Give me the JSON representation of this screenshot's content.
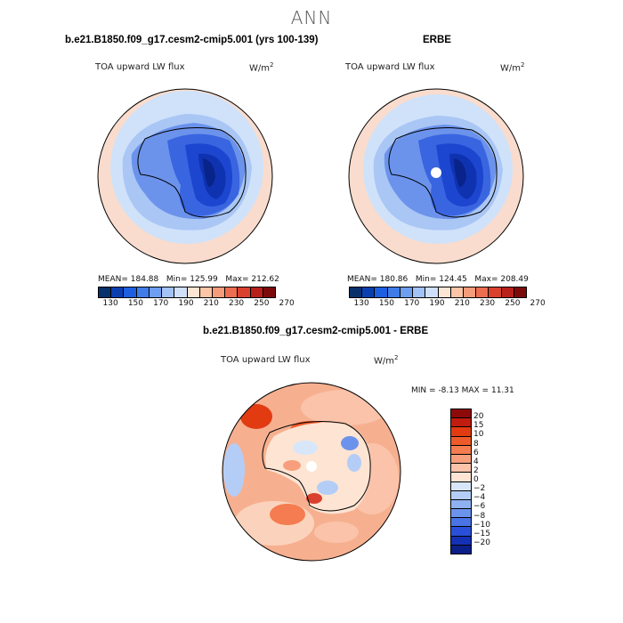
{
  "figure": {
    "season": "ANN"
  },
  "panel_model": {
    "title": "b.e21.B1850.f09_g17.cesm2-cmip5.001 (yrs 100-139)",
    "variable": "TOA upward LW flux",
    "units_base": "W/m",
    "units_exp": "2",
    "mean_label": "MEAN=",
    "mean": "184.88",
    "min_label": "Min=",
    "min": "125.99",
    "max_label": "Max=",
    "max": "212.62"
  },
  "panel_obs": {
    "title": "ERBE",
    "variable": "TOA upward LW flux",
    "units_base": "W/m",
    "units_exp": "2",
    "mean_label": "MEAN=",
    "mean": "180.86",
    "min_label": "Min=",
    "min": "124.45",
    "max_label": "Max=",
    "max": "208.49"
  },
  "panel_diff": {
    "title": "b.e21.B1850.f09_g17.cesm2-cmip5.001 - ERBE",
    "variable": "TOA upward LW flux",
    "units_base": "W/m",
    "units_exp": "2",
    "min_label": "MIN =",
    "min": "-8.13",
    "max_label": "MAX =",
    "max": "11.31"
  },
  "abs_colorbar": {
    "ticks": [
      "130",
      "150",
      "170",
      "190",
      "210",
      "230",
      "250",
      "270"
    ],
    "colors": [
      "#08306b",
      "#0b3fb0",
      "#1d5fe0",
      "#3f7ce8",
      "#6e9ef0",
      "#a3c2f5",
      "#cfe0fa",
      "#fde5d4",
      "#fbc5a6",
      "#f59d7a",
      "#ec6d4f",
      "#d9412e",
      "#b8201a",
      "#7d0a0a"
    ]
  },
  "diff_colorbar": {
    "ticks": [
      "20",
      "15",
      "10",
      "8",
      "6",
      "4",
      "2",
      "0",
      "−2",
      "−4",
      "−6",
      "−8",
      "−10",
      "−15",
      "−20"
    ],
    "colors": [
      "#8c0a0a",
      "#c01c0f",
      "#e23b12",
      "#ef5a2a",
      "#f47c50",
      "#f79f7c",
      "#fac3aa",
      "#fde4d3",
      "#d8e6fa",
      "#b4cdf6",
      "#8fb1f1",
      "#6c93ec",
      "#4a74e6",
      "#2a50da",
      "#1430b5",
      "#0a1f8a"
    ]
  },
  "map_fields": {
    "abs": {
      "ocean": "#f9dccd",
      "rings": [
        "#cfe2fa",
        "#a9c6f5"
      ],
      "ice_levels": [
        "#6c93ec",
        "#3a65e0",
        "#1c46cf",
        "#0f32b0",
        "#08238a"
      ]
    },
    "diff": {
      "ocean": "#f6b090"
    }
  }
}
